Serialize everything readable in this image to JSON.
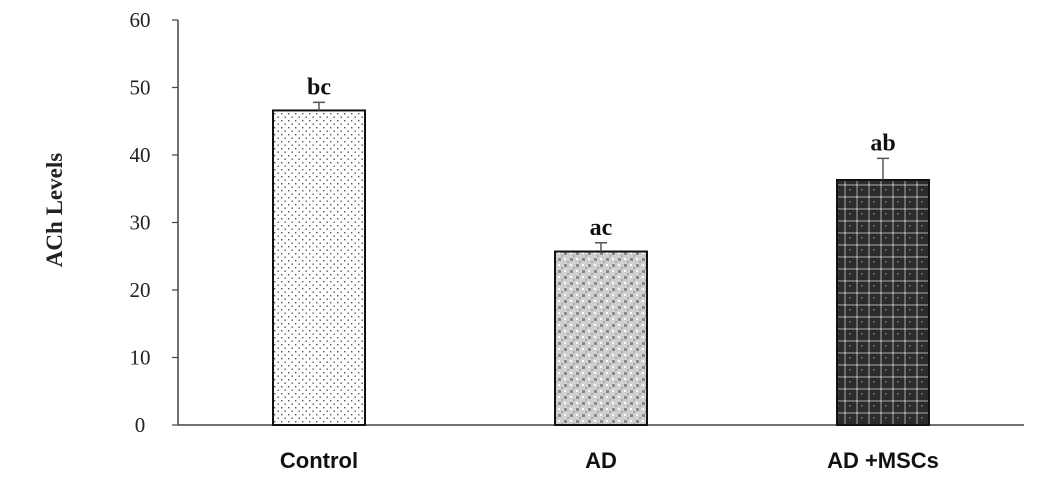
{
  "chart_data": {
    "type": "bar",
    "title": "",
    "xlabel": "",
    "ylabel": "ACh Levels",
    "ylim": [
      0,
      60
    ],
    "yticks": [
      0,
      10,
      20,
      30,
      40,
      50,
      60
    ],
    "categories": [
      "Control",
      "AD",
      "AD +MSCs"
    ],
    "values": [
      46.6,
      25.7,
      36.3
    ],
    "error": [
      1.2,
      1.3,
      3.2
    ],
    "significance_labels": [
      "bc",
      "ac",
      "ab"
    ],
    "patterns": [
      "sparse-dots",
      "gray-check",
      "dark-plaid"
    ],
    "grid": false,
    "legend": "none"
  }
}
